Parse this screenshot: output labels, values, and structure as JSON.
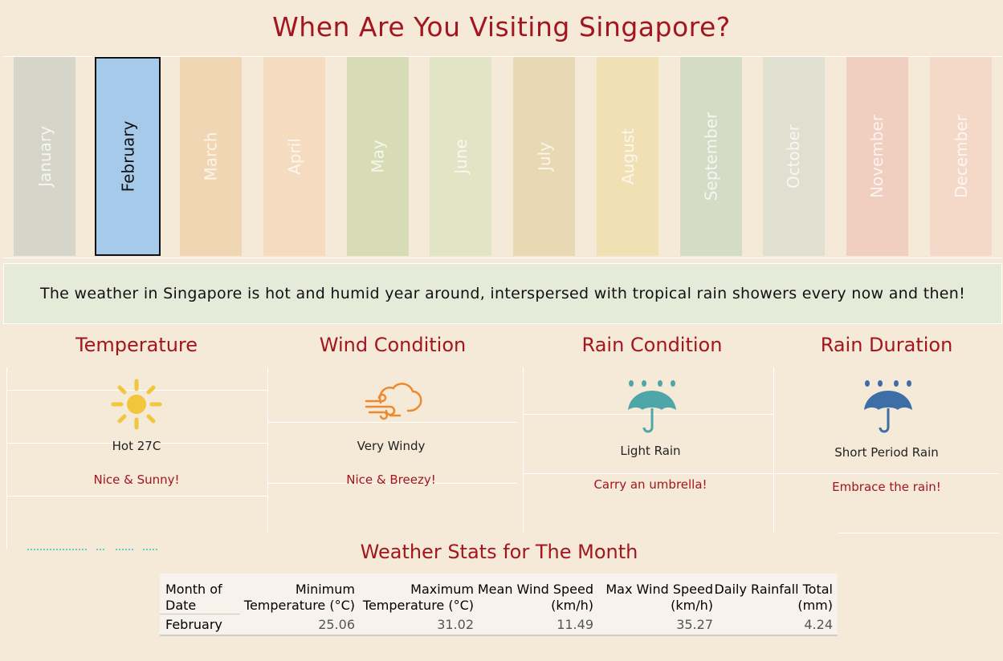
{
  "title": "When Are You Visiting Singapore?",
  "months": [
    {
      "label": "January",
      "color": "#d6d5ca",
      "selected": false
    },
    {
      "label": "February",
      "color": "#a6cbea",
      "selected": true
    },
    {
      "label": "March",
      "color": "#f1d6b4",
      "selected": false
    },
    {
      "label": "April",
      "color": "#f5dcc0",
      "selected": false
    },
    {
      "label": "May",
      "color": "#d7dcb6",
      "selected": false
    },
    {
      "label": "June",
      "color": "#e2e4c6",
      "selected": false
    },
    {
      "label": "July",
      "color": "#e8d9b4",
      "selected": false
    },
    {
      "label": "August",
      "color": "#f2e0b5",
      "selected": false
    },
    {
      "label": "September",
      "color": "#d4dcc6",
      "selected": false
    },
    {
      "label": "October",
      "color": "#e0e0d0",
      "selected": false
    },
    {
      "label": "November",
      "color": "#f1cfc0",
      "selected": false
    },
    {
      "label": "December",
      "color": "#f5d9c8",
      "selected": false
    }
  ],
  "banner": "The weather in Singapore is hot and humid year around, interspersed with tropical rain showers every now and then!",
  "panels": {
    "temperature": {
      "title": "Temperature",
      "icon": "sun-icon",
      "condition": "Hot  27C",
      "tip": "Nice & Sunny!"
    },
    "wind": {
      "title": "Wind Condition",
      "icon": "windy-cloud-icon",
      "condition": "Very Windy",
      "tip": "Nice & Breezy!"
    },
    "rain": {
      "title": "Rain Condition",
      "icon": "umbrella-rain-icon",
      "condition": "Light Rain",
      "tip": "Carry an umbrella!"
    },
    "duration": {
      "title": "Rain Duration",
      "icon": "umbrella-rain-dark-icon",
      "condition": "Short Period Rain",
      "tip": "Embrace the rain!"
    }
  },
  "stats": {
    "title": "Weather Stats for The Month",
    "headers": [
      [
        "Month of",
        "Date"
      ],
      [
        "Minimum",
        "Temperature (°C)"
      ],
      [
        "Maximum",
        "Temperature (°C)"
      ],
      [
        "Mean Wind Speed",
        "(km/h)"
      ],
      [
        "Max Wind Speed",
        "(km/h)"
      ],
      [
        "Daily Rainfall Total",
        "(mm)"
      ]
    ],
    "row": [
      "February",
      "25.06",
      "31.02",
      "11.49",
      "35.27",
      "4.24"
    ]
  },
  "colors": {
    "accent": "#a3151f",
    "background": "#f5e9d8",
    "banner": "#e6ead9"
  }
}
